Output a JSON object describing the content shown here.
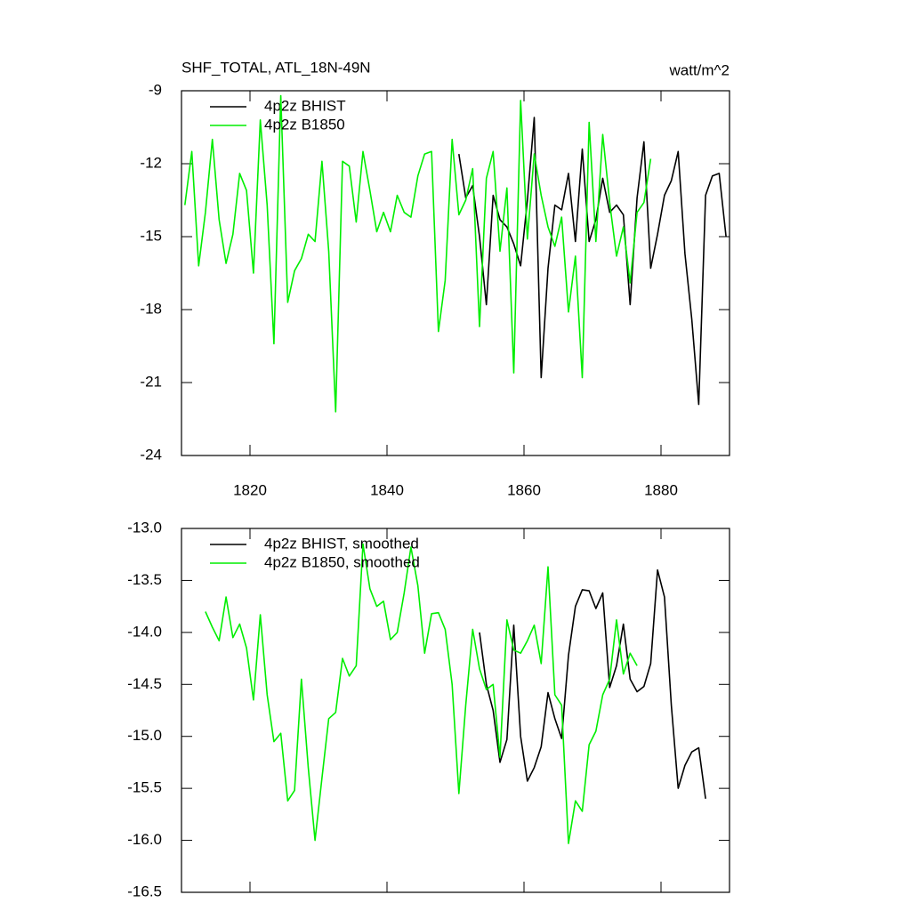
{
  "chart_data": [
    {
      "type": "line",
      "title": "SHF_TOTAL, ATL_18N-49N",
      "units": "watt/m^2",
      "xlim": [
        1810,
        1890
      ],
      "xticks": [
        1820,
        1840,
        1860,
        1880
      ],
      "show_xtick_labels": true,
      "ylim": [
        -24,
        -9
      ],
      "yticks": [
        -24,
        -21,
        -18,
        -15,
        -12,
        -9
      ],
      "series": [
        {
          "name": "4p2z BHIST",
          "color": "#000000",
          "x": [
            1850.5,
            1851.5,
            1852.5,
            1853.5,
            1854.5,
            1855.5,
            1856.5,
            1857.5,
            1858.5,
            1859.5,
            1860.5,
            1861.5,
            1862.5,
            1863.5,
            1864.5,
            1865.5,
            1866.5,
            1867.5,
            1868.5,
            1869.5,
            1870.5,
            1871.5,
            1872.5,
            1873.5,
            1874.5,
            1875.5,
            1876.5,
            1877.5,
            1878.5,
            1879.5,
            1880.5,
            1881.5,
            1882.5,
            1883.5,
            1884.5,
            1885.5,
            1886.5,
            1887.5,
            1888.5,
            1889.5
          ],
          "values": [
            -11.6,
            -13.4,
            -12.9,
            -15.0,
            -17.8,
            -13.3,
            -14.3,
            -14.6,
            -15.3,
            -16.2,
            -13.5,
            -10.1,
            -20.8,
            -16.3,
            -13.7,
            -13.9,
            -12.4,
            -15.2,
            -11.4,
            -15.2,
            -14.3,
            -12.6,
            -14.0,
            -13.7,
            -14.1,
            -17.8,
            -13.4,
            -11.1,
            -16.3,
            -14.9,
            -13.3,
            -12.7,
            -11.5,
            -15.7,
            -18.4,
            -21.9,
            -13.3,
            -12.5,
            -12.4,
            -15.0
          ]
        },
        {
          "name": "4p2z B1850",
          "color": "#00ee00",
          "x": [
            1810.5,
            1811.5,
            1812.5,
            1813.5,
            1814.5,
            1815.5,
            1816.5,
            1817.5,
            1818.5,
            1819.5,
            1820.5,
            1821.5,
            1822.5,
            1823.5,
            1824.5,
            1825.5,
            1826.5,
            1827.5,
            1828.5,
            1829.5,
            1830.5,
            1831.5,
            1832.5,
            1833.5,
            1834.5,
            1835.5,
            1836.5,
            1837.5,
            1838.5,
            1839.5,
            1840.5,
            1841.5,
            1842.5,
            1843.5,
            1844.5,
            1845.5,
            1846.5,
            1847.5,
            1848.5,
            1849.5,
            1850.5,
            1851.5,
            1852.5,
            1853.5,
            1854.5,
            1855.5,
            1856.5,
            1857.5,
            1858.5,
            1859.5,
            1860.5,
            1861.5,
            1862.5,
            1863.5,
            1864.5,
            1865.5,
            1866.5,
            1867.5,
            1868.5,
            1869.5,
            1870.5,
            1871.5,
            1872.5,
            1873.5,
            1874.5,
            1875.5,
            1876.5,
            1877.5,
            1878.5
          ],
          "values": [
            -13.7,
            -11.5,
            -16.2,
            -14.0,
            -11.0,
            -14.3,
            -16.1,
            -14.9,
            -12.4,
            -13.1,
            -16.5,
            -10.2,
            -13.7,
            -19.4,
            -9.2,
            -17.7,
            -16.4,
            -15.9,
            -14.9,
            -15.2,
            -11.9,
            -15.6,
            -22.2,
            -11.9,
            -12.1,
            -14.4,
            -11.5,
            -13.1,
            -14.8,
            -14.0,
            -14.8,
            -13.3,
            -14.0,
            -14.2,
            -12.5,
            -11.6,
            -11.5,
            -18.9,
            -16.8,
            -11.0,
            -14.1,
            -13.5,
            -12.2,
            -18.7,
            -12.6,
            -11.5,
            -15.6,
            -13.0,
            -20.6,
            -9.4,
            -15.1,
            -11.6,
            -13.3,
            -14.6,
            -15.4,
            -14.2,
            -18.1,
            -15.8,
            -20.8,
            -10.3,
            -15.2,
            -10.8,
            -13.6,
            -15.8,
            -14.6,
            -16.9,
            -14.0,
            -13.6,
            -11.8
          ]
        }
      ]
    },
    {
      "type": "line",
      "xlim": [
        1810,
        1890
      ],
      "xticks": [
        1820,
        1840,
        1860,
        1880
      ],
      "show_xtick_labels": false,
      "ylim": [
        -16.5,
        -13.0
      ],
      "yticks": [
        {
          "value": -16.5,
          "label": "-16.5"
        },
        {
          "value": -16,
          "label": "-16.0"
        },
        {
          "value": -15.5,
          "label": "-15.5"
        },
        {
          "value": -15,
          "label": "-15.0"
        },
        {
          "value": -14.5,
          "label": "-14.5"
        },
        {
          "value": -14,
          "label": "-14.0"
        },
        {
          "value": -13.5,
          "label": "-13.5"
        },
        {
          "value": -13,
          "label": "-13.0"
        }
      ],
      "series": [
        {
          "name": "4p2z BHIST, smoothed",
          "color": "#000000",
          "x": [
            1853.5,
            1854.5,
            1855.5,
            1856.5,
            1857.5,
            1858.5,
            1859.5,
            1860.5,
            1861.5,
            1862.5,
            1863.5,
            1864.5,
            1865.5,
            1866.5,
            1867.5,
            1868.5,
            1869.5,
            1870.5,
            1871.5,
            1872.5,
            1873.5,
            1874.5,
            1875.5,
            1876.5,
            1877.5,
            1878.5,
            1879.5,
            1880.5,
            1881.5,
            1882.5,
            1883.5,
            1884.5,
            1885.5,
            1886.5
          ],
          "values": [
            -14.0,
            -14.5,
            -14.75,
            -15.25,
            -15.03,
            -13.93,
            -15.0,
            -15.43,
            -15.3,
            -15.1,
            -14.58,
            -14.83,
            -15.02,
            -14.22,
            -13.75,
            -13.59,
            -13.6,
            -13.77,
            -13.62,
            -14.53,
            -14.32,
            -13.92,
            -14.45,
            -14.57,
            -14.52,
            -14.3,
            -13.4,
            -13.66,
            -14.7,
            -15.5,
            -15.28,
            -15.15,
            -15.11,
            -15.6
          ]
        },
        {
          "name": "4p2z B1850, smoothed",
          "color": "#00ee00",
          "x": [
            1813.5,
            1814.5,
            1815.5,
            1816.5,
            1817.5,
            1818.5,
            1819.5,
            1820.5,
            1821.5,
            1822.5,
            1823.5,
            1824.5,
            1825.5,
            1826.5,
            1827.5,
            1828.5,
            1829.5,
            1830.5,
            1831.5,
            1832.5,
            1833.5,
            1834.5,
            1835.5,
            1836.5,
            1837.5,
            1838.5,
            1839.5,
            1840.5,
            1841.5,
            1842.5,
            1843.5,
            1844.5,
            1845.5,
            1846.5,
            1847.5,
            1848.5,
            1849.5,
            1850.5,
            1851.5,
            1852.5,
            1853.5,
            1854.5,
            1855.5,
            1856.5,
            1857.5,
            1858.5,
            1859.5,
            1860.5,
            1861.5,
            1862.5,
            1863.5,
            1864.5,
            1865.5,
            1866.5,
            1867.5,
            1868.5,
            1869.5,
            1870.5,
            1871.5,
            1872.5,
            1873.5,
            1874.5,
            1875.5,
            1876.5
          ],
          "values": [
            -13.8,
            -13.95,
            -14.08,
            -13.66,
            -14.05,
            -13.92,
            -14.15,
            -14.65,
            -13.83,
            -14.6,
            -15.05,
            -14.97,
            -15.62,
            -15.52,
            -14.45,
            -15.3,
            -16.0,
            -15.4,
            -14.83,
            -14.77,
            -14.25,
            -14.42,
            -14.32,
            -13.15,
            -13.58,
            -13.75,
            -13.7,
            -14.07,
            -14.0,
            -13.62,
            -13.18,
            -13.55,
            -14.2,
            -13.82,
            -13.81,
            -13.97,
            -14.5,
            -15.55,
            -14.7,
            -13.97,
            -14.35,
            -14.55,
            -14.5,
            -15.2,
            -13.88,
            -14.17,
            -14.2,
            -14.08,
            -13.93,
            -14.3,
            -13.37,
            -14.6,
            -14.7,
            -16.03,
            -15.62,
            -15.72,
            -15.08,
            -14.95,
            -14.6,
            -14.45,
            -13.88,
            -14.4,
            -14.2,
            -14.32
          ]
        }
      ]
    }
  ]
}
